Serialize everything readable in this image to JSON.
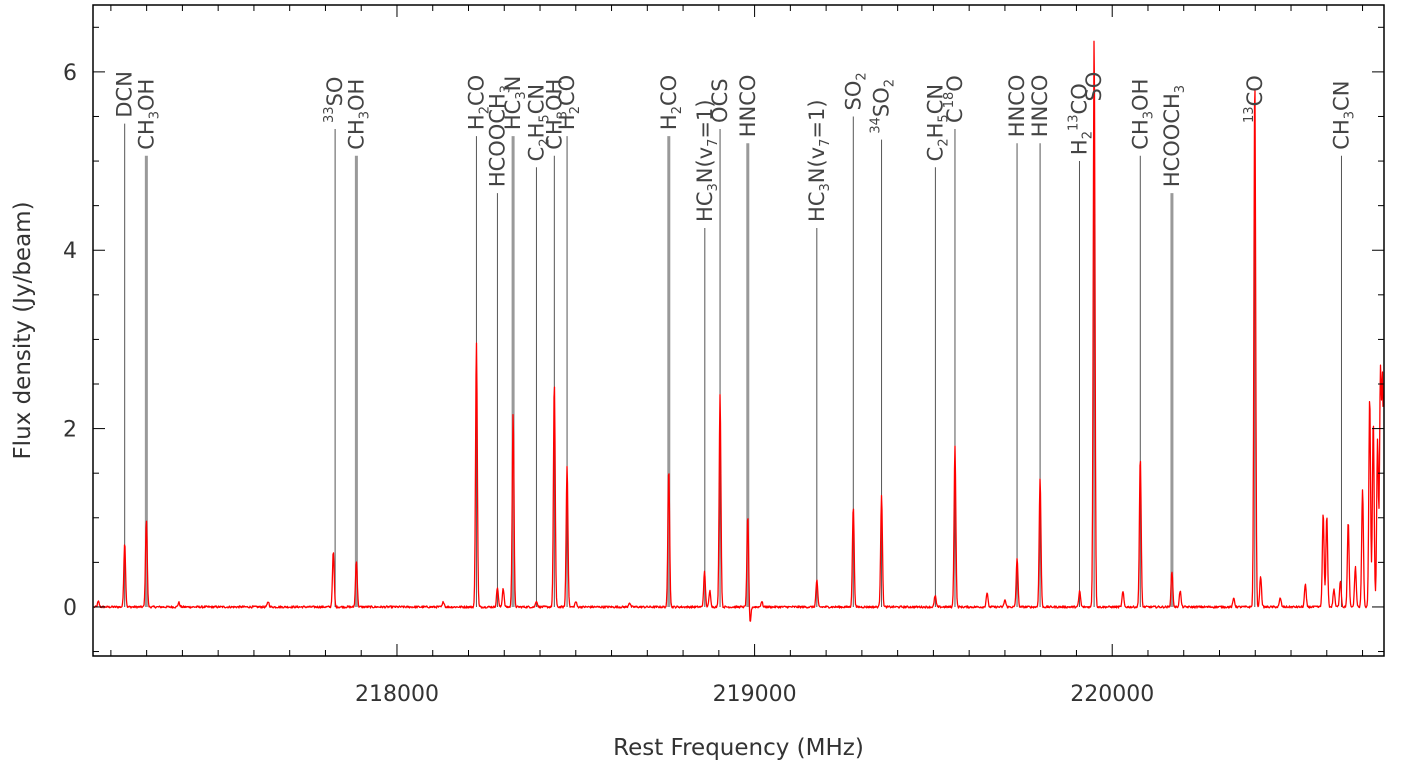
{
  "chart_data": {
    "type": "line",
    "title": "",
    "xlabel": "Rest Frequency (MHz)",
    "ylabel": "Flux density (Jy/beam)",
    "xlim": [
      217150,
      220760
    ],
    "ylim": [
      -0.55,
      6.75
    ],
    "x_ticks": [
      218000,
      219000,
      220000
    ],
    "x_tick_labels": [
      "218000",
      "219000",
      "220000"
    ],
    "y_ticks": [
      0,
      2,
      4,
      6
    ],
    "y_tick_labels": [
      "0",
      "2",
      "4",
      "6"
    ],
    "grid": false,
    "legend": "none",
    "colors": {
      "spectrum": "#ff0000",
      "marker": "#555555",
      "frame": "#000000"
    },
    "series": [
      {
        "color": "#ff0000",
        "baseline_noise": 0.012,
        "peaks": [
          {
            "x": 217165,
            "y": 0.06
          },
          {
            "x": 217238.6,
            "y": 0.72
          },
          {
            "x": 217299.2,
            "y": 0.98
          },
          {
            "x": 217390,
            "y": 0.05
          },
          {
            "x": 217640,
            "y": 0.06
          },
          {
            "x": 217822,
            "y": 0.62
          },
          {
            "x": 217886.5,
            "y": 0.52
          },
          {
            "x": 218130,
            "y": 0.06
          },
          {
            "x": 218222.2,
            "y": 2.97
          },
          {
            "x": 218280.9,
            "y": 0.22
          },
          {
            "x": 218297,
            "y": 0.21
          },
          {
            "x": 218324.7,
            "y": 2.17
          },
          {
            "x": 218390,
            "y": 0.07
          },
          {
            "x": 218440,
            "y": 2.52
          },
          {
            "x": 218475.6,
            "y": 1.58
          },
          {
            "x": 218500,
            "y": 0.06
          },
          {
            "x": 218650,
            "y": 0.05
          },
          {
            "x": 218760,
            "y": 1.56
          },
          {
            "x": 218860,
            "y": 0.39
          },
          {
            "x": 218875,
            "y": 0.18
          },
          {
            "x": 218903.4,
            "y": 2.38
          },
          {
            "x": 218981,
            "y": 1.02
          },
          {
            "x": 218987,
            "y": -0.2
          },
          {
            "x": 219020,
            "y": 0.06
          },
          {
            "x": 219174,
            "y": 0.3
          },
          {
            "x": 219276,
            "y": 1.13
          },
          {
            "x": 219355,
            "y": 1.26
          },
          {
            "x": 219505,
            "y": 0.13
          },
          {
            "x": 219560.3,
            "y": 1.8
          },
          {
            "x": 219650,
            "y": 0.16
          },
          {
            "x": 219700,
            "y": 0.08
          },
          {
            "x": 219734,
            "y": 0.55
          },
          {
            "x": 219798.3,
            "y": 1.44
          },
          {
            "x": 219909,
            "y": 0.18
          },
          {
            "x": 219949.4,
            "y": 6.4
          },
          {
            "x": 220030,
            "y": 0.17
          },
          {
            "x": 220078.5,
            "y": 1.68
          },
          {
            "x": 220167,
            "y": 0.4
          },
          {
            "x": 220190,
            "y": 0.18
          },
          {
            "x": 220340,
            "y": 0.1
          },
          {
            "x": 220398.7,
            "y": 5.95
          },
          {
            "x": 220415,
            "y": 0.35
          },
          {
            "x": 220470,
            "y": 0.1
          },
          {
            "x": 220540,
            "y": 0.25
          },
          {
            "x": 220590,
            "y": 1.05
          },
          {
            "x": 220600,
            "y": 1.02
          },
          {
            "x": 220620,
            "y": 0.2
          },
          {
            "x": 220638,
            "y": 0.3
          },
          {
            "x": 220660,
            "y": 0.95
          },
          {
            "x": 220680,
            "y": 0.45
          },
          {
            "x": 220700,
            "y": 1.32
          },
          {
            "x": 220720,
            "y": 2.35
          },
          {
            "x": 220730,
            "y": 2.1
          },
          {
            "x": 220742,
            "y": 1.88
          },
          {
            "x": 220750,
            "y": 2.57
          },
          {
            "x": 220756,
            "y": 2.5
          }
        ]
      }
    ],
    "annotations": [
      {
        "x": 217238.6,
        "top": 5.42,
        "style": "thin",
        "label": [
          [
            "DCN",
            ""
          ]
        ]
      },
      {
        "x": 217299.2,
        "top": 5.06,
        "style": "thick",
        "label": [
          [
            "CH",
            ""
          ],
          [
            "3",
            "sub"
          ],
          [
            "OH",
            ""
          ]
        ]
      },
      {
        "x": 217827.0,
        "top": 5.36,
        "style": "thin",
        "label": [
          [
            "33",
            "sup"
          ],
          [
            "SO",
            ""
          ]
        ]
      },
      {
        "x": 217886.5,
        "top": 5.06,
        "style": "thick",
        "label": [
          [
            "CH",
            ""
          ],
          [
            "3",
            "sub"
          ],
          [
            "OH",
            ""
          ]
        ]
      },
      {
        "x": 218222.2,
        "top": 5.28,
        "style": "thin",
        "label": [
          [
            "H",
            ""
          ],
          [
            "2",
            "sub"
          ],
          [
            "CO",
            ""
          ]
        ]
      },
      {
        "x": 218280.9,
        "top": 4.64,
        "style": "thin",
        "label": [
          [
            "HCOOCH",
            ""
          ],
          [
            "3",
            "sub"
          ]
        ]
      },
      {
        "x": 218324.7,
        "top": 5.28,
        "style": "thick",
        "label": [
          [
            "HC",
            ""
          ],
          [
            "3",
            "sub"
          ],
          [
            "N",
            ""
          ]
        ]
      },
      {
        "x": 218390.0,
        "top": 4.93,
        "style": "thin",
        "label": [
          [
            "C",
            ""
          ],
          [
            "2",
            "sub"
          ],
          [
            "H",
            ""
          ],
          [
            "5",
            "sub"
          ],
          [
            "CN",
            ""
          ]
        ]
      },
      {
        "x": 218440.0,
        "top": 5.06,
        "style": "thin",
        "label": [
          [
            "CH",
            ""
          ],
          [
            "3",
            "sub"
          ],
          [
            "OH",
            ""
          ]
        ]
      },
      {
        "x": 218475.6,
        "top": 5.28,
        "style": "thin",
        "label": [
          [
            "H",
            ""
          ],
          [
            "2",
            "sub"
          ],
          [
            "CO",
            ""
          ]
        ]
      },
      {
        "x": 218760.1,
        "top": 5.28,
        "style": "thick",
        "label": [
          [
            "H",
            ""
          ],
          [
            "2",
            "sub"
          ],
          [
            "CO",
            ""
          ]
        ]
      },
      {
        "x": 218860.8,
        "top": 4.25,
        "style": "thin",
        "label": [
          [
            "HC",
            ""
          ],
          [
            "3",
            "sub"
          ],
          [
            "N(v",
            ""
          ],
          [
            "7",
            "sub"
          ],
          [
            "=1)",
            ""
          ]
        ]
      },
      {
        "x": 218903.4,
        "top": 5.36,
        "style": "thin",
        "label": [
          [
            "OCS",
            ""
          ]
        ]
      },
      {
        "x": 218981.0,
        "top": 5.2,
        "style": "thick",
        "label": [
          [
            "HNCO",
            ""
          ]
        ]
      },
      {
        "x": 219174.0,
        "top": 4.25,
        "style": "thin",
        "label": [
          [
            "HC",
            ""
          ],
          [
            "3",
            "sub"
          ],
          [
            "N(v",
            ""
          ],
          [
            "7",
            "sub"
          ],
          [
            "=1)",
            ""
          ]
        ]
      },
      {
        "x": 219276.0,
        "top": 5.5,
        "style": "thin",
        "label": [
          [
            "SO",
            ""
          ],
          [
            "2",
            "sub"
          ]
        ]
      },
      {
        "x": 219355.0,
        "top": 5.24,
        "style": "thin",
        "label": [
          [
            "34",
            "sup"
          ],
          [
            "SO",
            ""
          ],
          [
            "2",
            "sub"
          ]
        ]
      },
      {
        "x": 219505.6,
        "top": 4.93,
        "style": "thin",
        "label": [
          [
            "C",
            ""
          ],
          [
            "2",
            "sub"
          ],
          [
            "H",
            ""
          ],
          [
            "5",
            "sub"
          ],
          [
            "CN",
            ""
          ]
        ]
      },
      {
        "x": 219560.3,
        "top": 5.36,
        "style": "thin",
        "label": [
          [
            "C",
            ""
          ],
          [
            "18",
            "sup"
          ],
          [
            "O",
            ""
          ]
        ]
      },
      {
        "x": 219733.9,
        "top": 5.2,
        "style": "thin",
        "label": [
          [
            "HNCO",
            ""
          ]
        ]
      },
      {
        "x": 219798.3,
        "top": 5.2,
        "style": "thin",
        "label": [
          [
            "HNCO",
            ""
          ]
        ]
      },
      {
        "x": 219908.5,
        "top": 5.0,
        "style": "thin",
        "label": [
          [
            "H",
            ""
          ],
          [
            "2",
            "sub"
          ],
          [
            "13",
            "sup"
          ],
          [
            "CO",
            ""
          ]
        ]
      },
      {
        "x": 219949.4,
        "top": 5.6,
        "style": "thin",
        "label": [
          [
            "SO",
            ""
          ]
        ]
      },
      {
        "x": 220078.5,
        "top": 5.06,
        "style": "thin",
        "label": [
          [
            "CH",
            ""
          ],
          [
            "3",
            "sub"
          ],
          [
            "OH",
            ""
          ]
        ]
      },
      {
        "x": 220167.0,
        "top": 4.64,
        "style": "thick",
        "label": [
          [
            "HCOOCH",
            ""
          ],
          [
            "3",
            "sub"
          ]
        ]
      },
      {
        "x": 220398.7,
        "top": 5.36,
        "style": "thin",
        "label": [
          [
            "13",
            "sup"
          ],
          [
            "CO",
            ""
          ]
        ]
      },
      {
        "x": 220641.1,
        "top": 5.06,
        "style": "thin",
        "label": [
          [
            "CH",
            ""
          ],
          [
            "3",
            "sub"
          ],
          [
            "CN",
            ""
          ]
        ]
      }
    ]
  }
}
